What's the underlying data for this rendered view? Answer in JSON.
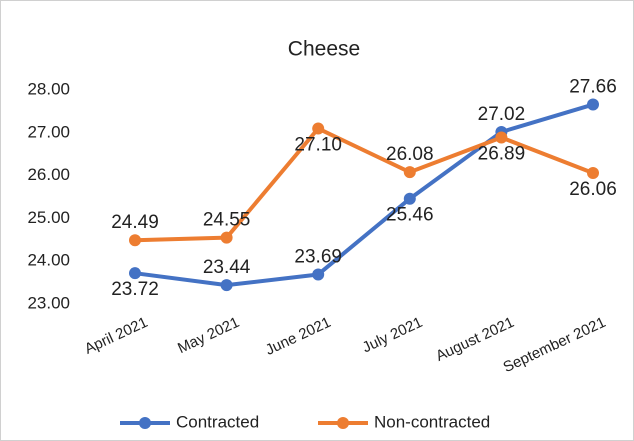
{
  "chart_data": {
    "type": "line",
    "title": "Cheese",
    "categories": [
      "April 2021",
      "May 2021",
      "June 2021",
      "July 2021",
      "August 2021",
      "September 2021"
    ],
    "series": [
      {
        "name": "Contracted",
        "color": "#4472c4",
        "values": [
          23.72,
          23.44,
          23.69,
          25.46,
          27.02,
          27.66
        ],
        "value_labels": [
          "23.72",
          "23.44",
          "23.69",
          "25.46",
          "27.02",
          "27.66"
        ]
      },
      {
        "name": "Non-contracted",
        "color": "#ed7d31",
        "values": [
          24.49,
          24.55,
          27.1,
          26.08,
          26.89,
          26.06
        ],
        "value_labels": [
          "24.49",
          "24.55",
          "27.10",
          "26.08",
          "26.89",
          "26.06"
        ]
      }
    ],
    "ylim": [
      23,
      28
    ],
    "yticks": [
      {
        "value": 23,
        "label": "23.00"
      },
      {
        "value": 24,
        "label": "24.00"
      },
      {
        "value": 25,
        "label": "25.00"
      },
      {
        "value": 26,
        "label": "26.00"
      },
      {
        "value": 27,
        "label": "27.00"
      },
      {
        "value": 28,
        "label": "28.00"
      }
    ],
    "legend": "bottom"
  }
}
